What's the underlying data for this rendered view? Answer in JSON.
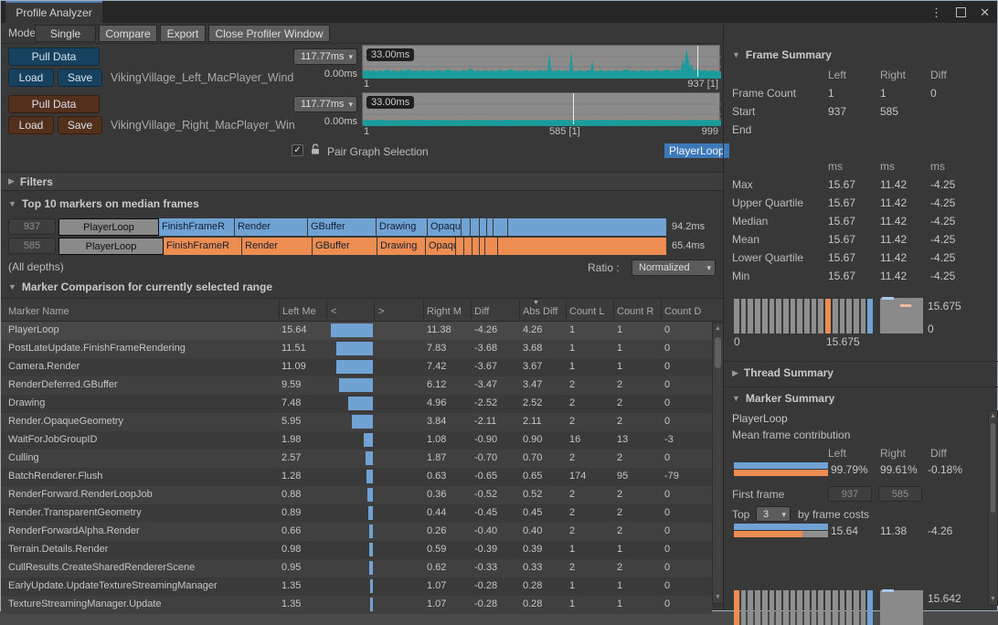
{
  "window": {
    "tab_title": "Profile Analyzer",
    "menu_icon": "⋮",
    "close_icon": "✕"
  },
  "toolbar": {
    "mode_label": "Mode:",
    "single": "Single",
    "compare": "Compare",
    "export": "Export",
    "close_profiler": "Close Profiler Window"
  },
  "left_dataset": {
    "pull_button": "Pull Data",
    "load_button": "Load",
    "save_button": "Save",
    "filename": "VikingVillage_Left_MacPlayer_Wind",
    "range_max": "117.77ms",
    "range_min": "0.00ms",
    "marker_label": "33.00ms",
    "axis_start": "1",
    "axis_end": "937 [1]"
  },
  "right_dataset": {
    "pull_button": "Pull Data",
    "load_button": "Load",
    "save_button": "Save",
    "filename": "VikingVillage_Right_MacPlayer_Win",
    "range_max": "117.77ms",
    "range_min": "0.00ms",
    "marker_label": "33.00ms",
    "axis_start": "1",
    "axis_mid": "585 [1]",
    "axis_end": "999"
  },
  "pair": {
    "label": "Pair Graph Selection",
    "selected_marker": "PlayerLoop",
    "checked": true
  },
  "filters": {
    "label": "Filters"
  },
  "top10": {
    "title": "Top 10 markers on median frames",
    "depths_label": "(All depths)",
    "ratio_label": "Ratio :",
    "ratio_value": "Normalized",
    "rows": [
      {
        "frame": "937",
        "total": "94.2ms",
        "color": "#70a2d4",
        "segments": [
          {
            "label": "PlayerLoop",
            "w": 110,
            "sel": true
          },
          {
            "label": "FinishFrameR",
            "w": 83
          },
          {
            "label": "Render",
            "w": 80
          },
          {
            "label": "GBuffer",
            "w": 75
          },
          {
            "label": "Drawing",
            "w": 56
          },
          {
            "label": "Opaqu",
            "w": 37
          },
          {
            "w": 10
          },
          {
            "w": 10
          },
          {
            "w": 8
          },
          {
            "w": 7
          },
          {
            "w": 16
          },
          {
            "w": 174
          }
        ]
      },
      {
        "frame": "585",
        "total": "65.4ms",
        "color": "#ee8d52",
        "segments": [
          {
            "label": "PlayerLoop",
            "w": 115,
            "sel": true
          },
          {
            "label": "FinishFrameR",
            "w": 86
          },
          {
            "label": "Render",
            "w": 77
          },
          {
            "label": "GBuffer",
            "w": 71
          },
          {
            "label": "Drawing",
            "w": 53
          },
          {
            "label": "Opaqu",
            "w": 33
          },
          {
            "w": 9
          },
          {
            "w": 9
          },
          {
            "w": 8
          },
          {
            "w": 6
          },
          {
            "w": 14
          },
          {
            "w": 185
          }
        ]
      }
    ]
  },
  "comparison": {
    "title": "Marker Comparison for currently selected range",
    "columns": [
      "Marker Name",
      "Left Me",
      "<",
      ">",
      "Right M",
      "Diff",
      "Abs Diff",
      "Count L",
      "Count R",
      "Count D"
    ],
    "rows": [
      {
        "name": "PlayerLoop",
        "left": "15.64",
        "right": "11.38",
        "diff": "-4.26",
        "abs": "4.26",
        "count_l": "1",
        "count_r": "1",
        "count_d": "0"
      },
      {
        "name": "PostLateUpdate.FinishFrameRendering",
        "left": "11.51",
        "right": "7.83",
        "diff": "-3.68",
        "abs": "3.68",
        "count_l": "1",
        "count_r": "1",
        "count_d": "0"
      },
      {
        "name": "Camera.Render",
        "left": "11.09",
        "right": "7.42",
        "diff": "-3.67",
        "abs": "3.67",
        "count_l": "1",
        "count_r": "1",
        "count_d": "0"
      },
      {
        "name": "RenderDeferred.GBuffer",
        "left": "9.59",
        "right": "6.12",
        "diff": "-3.47",
        "abs": "3.47",
        "count_l": "2",
        "count_r": "2",
        "count_d": "0"
      },
      {
        "name": "Drawing",
        "left": "7.48",
        "right": "4.96",
        "diff": "-2.52",
        "abs": "2.52",
        "count_l": "2",
        "count_r": "2",
        "count_d": "0"
      },
      {
        "name": "Render.OpaqueGeometry",
        "left": "5.95",
        "right": "3.84",
        "diff": "-2.11",
        "abs": "2.11",
        "count_l": "2",
        "count_r": "2",
        "count_d": "0"
      },
      {
        "name": "WaitForJobGroupID",
        "left": "1.98",
        "right": "1.08",
        "diff": "-0.90",
        "abs": "0.90",
        "count_l": "16",
        "count_r": "13",
        "count_d": "-3"
      },
      {
        "name": "Culling",
        "left": "2.57",
        "right": "1.87",
        "diff": "-0.70",
        "abs": "0.70",
        "count_l": "2",
        "count_r": "2",
        "count_d": "0"
      },
      {
        "name": "BatchRenderer.Flush",
        "left": "1.28",
        "right": "0.63",
        "diff": "-0.65",
        "abs": "0.65",
        "count_l": "174",
        "count_r": "95",
        "count_d": "-79"
      },
      {
        "name": "RenderForward.RenderLoopJob",
        "left": "0.88",
        "right": "0.36",
        "diff": "-0.52",
        "abs": "0.52",
        "count_l": "2",
        "count_r": "2",
        "count_d": "0"
      },
      {
        "name": "Render.TransparentGeometry",
        "left": "0.89",
        "right": "0.44",
        "diff": "-0.45",
        "abs": "0.45",
        "count_l": "2",
        "count_r": "2",
        "count_d": "0"
      },
      {
        "name": "RenderForwardAlpha.Render",
        "left": "0.66",
        "right": "0.26",
        "diff": "-0.40",
        "abs": "0.40",
        "count_l": "2",
        "count_r": "2",
        "count_d": "0"
      },
      {
        "name": "Terrain.Details.Render",
        "left": "0.98",
        "right": "0.59",
        "diff": "-0.39",
        "abs": "0.39",
        "count_l": "1",
        "count_r": "1",
        "count_d": "0"
      },
      {
        "name": "CullResults.CreateSharedRendererScene",
        "left": "0.95",
        "right": "0.62",
        "diff": "-0.33",
        "abs": "0.33",
        "count_l": "2",
        "count_r": "2",
        "count_d": "0"
      },
      {
        "name": "EarlyUpdate.UpdateTextureStreamingManager",
        "left": "1.35",
        "right": "1.07",
        "diff": "-0.28",
        "abs": "0.28",
        "count_l": "1",
        "count_r": "1",
        "count_d": "0"
      },
      {
        "name": "TextureStreamingManager.Update",
        "left": "1.35",
        "right": "1.07",
        "diff": "-0.28",
        "abs": "0.28",
        "count_l": "1",
        "count_r": "1",
        "count_d": "0"
      }
    ]
  },
  "frame_summary": {
    "title": "Frame Summary",
    "col_headers": {
      "l": "Left",
      "r": "Right",
      "d": "Diff"
    },
    "rows": [
      {
        "label": "Frame Count",
        "l": "1",
        "r": "1",
        "d": "0"
      },
      {
        "label": "Start",
        "l": "937",
        "r": "585",
        "d": ""
      },
      {
        "label": "End",
        "l": "",
        "r": "",
        "d": ""
      }
    ],
    "units": {
      "l": "ms",
      "r": "ms",
      "d": "ms"
    },
    "stats": [
      {
        "label": "Max",
        "l": "15.67",
        "r": "11.42",
        "d": "-4.25"
      },
      {
        "label": "Upper Quartile",
        "l": "15.67",
        "r": "11.42",
        "d": "-4.25"
      },
      {
        "label": "Median",
        "l": "15.67",
        "r": "11.42",
        "d": "-4.25"
      },
      {
        "label": "Mean",
        "l": "15.67",
        "r": "11.42",
        "d": "-4.25"
      },
      {
        "label": "Lower Quartile",
        "l": "15.67",
        "r": "11.42",
        "d": "-4.25"
      },
      {
        "label": "Min",
        "l": "15.67",
        "r": "11.42",
        "d": "-4.25"
      }
    ],
    "histogram": {
      "bars": [
        "g",
        "g",
        "g",
        "g",
        "g",
        "g",
        "g",
        "g",
        "g",
        "g",
        "g",
        "g",
        "g",
        "o",
        "g",
        "g",
        "g",
        "g",
        "g",
        "b"
      ],
      "x_min": "0",
      "x_max": "15.675",
      "box_max": "15.675",
      "box_min": "0"
    }
  },
  "thread_summary": {
    "title": "Thread Summary"
  },
  "marker_summary": {
    "title": "Marker Summary",
    "marker": "PlayerLoop",
    "subtitle": "Mean frame contribution",
    "col_headers": {
      "l": "Left",
      "r": "Right",
      "d": "Diff"
    },
    "contribution": {
      "l": "99.79%",
      "r": "99.61%",
      "d": "-0.18%"
    },
    "first_frame_label": "First frame",
    "first_frame_left": "937",
    "first_frame_right": "585",
    "top_label": "Top",
    "top_value": "3",
    "top_suffix": "by frame costs",
    "costs": {
      "l": "15.64",
      "r": "11.38",
      "d": "-4.26"
    },
    "histogram": {
      "bars": [
        "o",
        "g",
        "g",
        "g",
        "g",
        "g",
        "g",
        "g",
        "g",
        "g",
        "g",
        "g",
        "g",
        "g",
        "g",
        "g",
        "g",
        "g",
        "g",
        "b"
      ],
      "max": "15.642"
    }
  },
  "colors": {
    "g": "#8f8f8f",
    "o": "#ee8d52",
    "b": "#70a2d4",
    "left_blue": "#70a2d4",
    "right_orange": "#ee8d52",
    "graph_teal": "#1a9c9c",
    "selection_blue": "#3d78b8"
  }
}
